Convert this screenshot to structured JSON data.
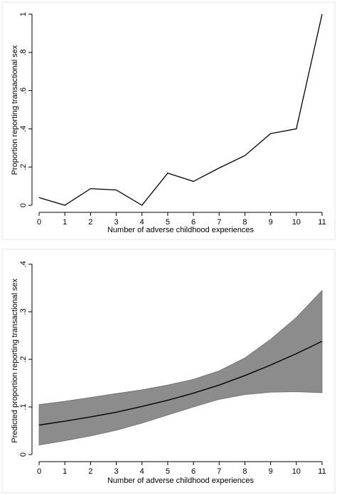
{
  "chart_data": [
    {
      "type": "line",
      "xlabel": "Number of adverse childhood experiences",
      "ylabel": "Proportion reporting transactional sex",
      "x": [
        0,
        1,
        2,
        3,
        4,
        5,
        6,
        7,
        8,
        9,
        10,
        11
      ],
      "xticks": [
        "0",
        "1",
        "2",
        "3",
        "4",
        "5",
        "6",
        "7",
        "8",
        "9",
        "10",
        "11"
      ],
      "yticks": [
        "0",
        ".2",
        ".4",
        ".6",
        ".8",
        "1"
      ],
      "xlim": [
        0,
        11
      ],
      "ylim": [
        0,
        1
      ],
      "grid": false,
      "series": [
        {
          "values": [
            0.04,
            0.0,
            0.087,
            0.08,
            0.0,
            0.168,
            0.125,
            0.195,
            0.26,
            0.375,
            0.4,
            1.0
          ]
        }
      ],
      "colors": {
        "line": "#000000"
      }
    },
    {
      "type": "area",
      "xlabel": "Number of adverse childhood experiences",
      "ylabel": "Predicted proportion reporting transactional sex",
      "x": [
        0,
        1,
        2,
        3,
        4,
        5,
        6,
        7,
        8,
        9,
        10,
        11
      ],
      "xticks": [
        "0",
        "1",
        "2",
        "3",
        "4",
        "5",
        "6",
        "7",
        "8",
        "9",
        "10",
        "11"
      ],
      "yticks": [
        "0",
        ".1",
        ".2",
        ".3",
        ".4"
      ],
      "xlim": [
        0,
        11
      ],
      "ylim": [
        0,
        0.4
      ],
      "grid": false,
      "series": [
        {
          "role": "fit",
          "values": [
            0.062,
            0.07,
            0.079,
            0.089,
            0.101,
            0.114,
            0.129,
            0.146,
            0.166,
            0.188,
            0.212,
            0.238
          ]
        },
        {
          "role": "upper",
          "values": [
            0.105,
            0.112,
            0.12,
            0.128,
            0.136,
            0.146,
            0.158,
            0.176,
            0.203,
            0.242,
            0.288,
            0.345
          ]
        },
        {
          "role": "lower",
          "values": [
            0.02,
            0.029,
            0.039,
            0.051,
            0.066,
            0.083,
            0.1,
            0.116,
            0.126,
            0.131,
            0.132,
            0.13
          ]
        }
      ],
      "colors": {
        "line": "#000000",
        "band": "#8c8c8c"
      }
    }
  ]
}
